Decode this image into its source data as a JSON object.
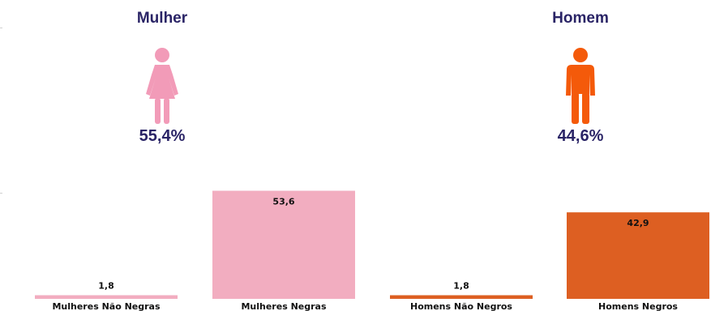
{
  "groups": {
    "women": {
      "title": "Mulher",
      "percent": "55,4%",
      "icon": "female-person-icon",
      "color": "#f29bb8"
    },
    "men": {
      "title": "Homem",
      "percent": "44,6%",
      "icon": "male-person-icon",
      "color": "#f45a0a"
    }
  },
  "chart_data": {
    "type": "bar",
    "categories": [
      "Mulheres Não Negras",
      "Mulheres Negras",
      "Homens Não Negros",
      "Homens Negros"
    ],
    "values": [
      1.8,
      53.6,
      1.8,
      42.9
    ],
    "value_labels": [
      "1,8",
      "53,6",
      "1,8",
      "42,9"
    ],
    "colors": [
      "#f2adc0",
      "#f2adc0",
      "#dd5f22",
      "#dd5f22"
    ],
    "title": "",
    "xlabel": "",
    "ylabel": "",
    "ylim": [
      0,
      60
    ],
    "grid": false,
    "legend": "none"
  }
}
